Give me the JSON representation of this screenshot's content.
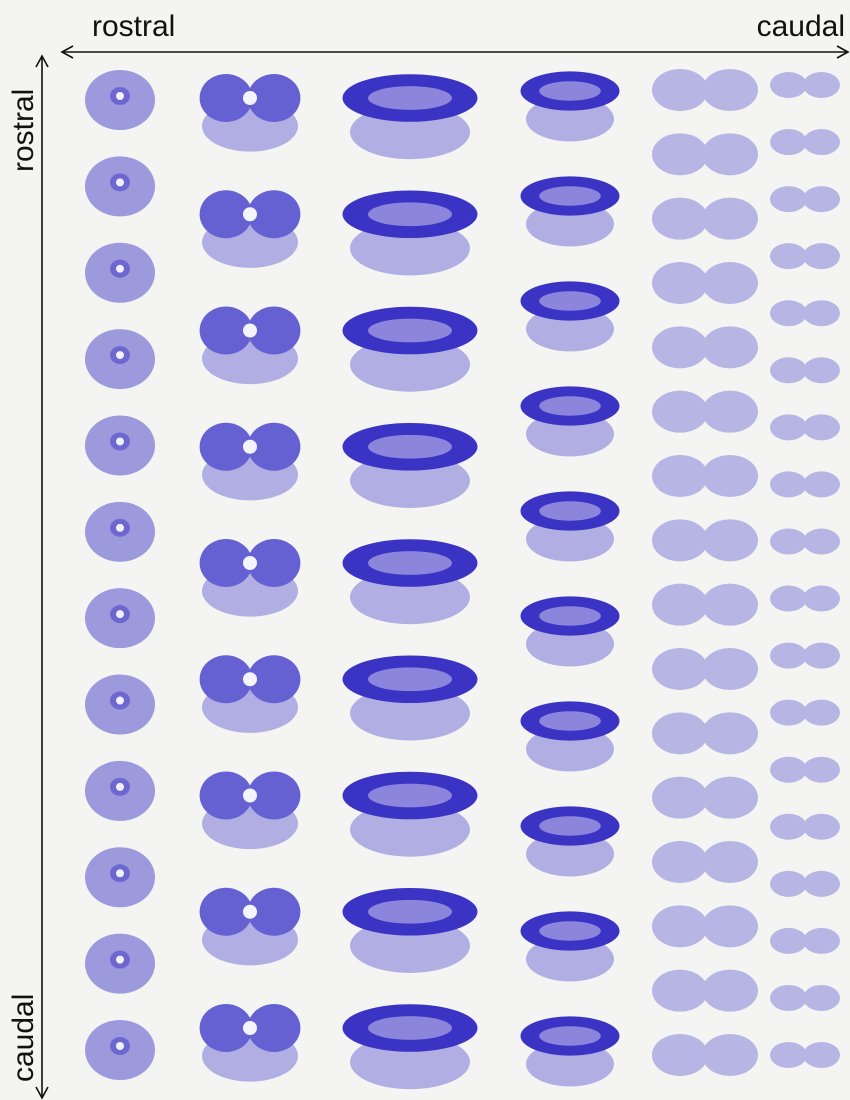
{
  "axes": {
    "horizontal": {
      "start": "rostral",
      "end": "caudal"
    },
    "vertical": {
      "start": "rostral",
      "end": "caudal"
    }
  }
}
